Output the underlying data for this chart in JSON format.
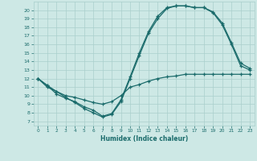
{
  "xlabel": "Humidex (Indice chaleur)",
  "xlim": [
    -0.5,
    23.5
  ],
  "ylim": [
    6.5,
    21
  ],
  "yticks": [
    7,
    8,
    9,
    10,
    11,
    12,
    13,
    14,
    15,
    16,
    17,
    18,
    19,
    20
  ],
  "xticks": [
    0,
    1,
    2,
    3,
    4,
    5,
    6,
    7,
    8,
    9,
    10,
    11,
    12,
    13,
    14,
    15,
    16,
    17,
    18,
    19,
    20,
    21,
    22,
    23
  ],
  "bg_color": "#cde8e5",
  "grid_color": "#aacfcc",
  "line_color": "#1a6b6b",
  "curve1_x": [
    0,
    1,
    2,
    3,
    4,
    5,
    6,
    7,
    8,
    9,
    10,
    11,
    12,
    13,
    14,
    15,
    16,
    17,
    18,
    19,
    20,
    21,
    22,
    23
  ],
  "curve1_y": [
    12,
    11,
    10.5,
    9.8,
    9.2,
    8.5,
    8.0,
    7.5,
    7.8,
    9.3,
    12.0,
    14.7,
    17.3,
    19.0,
    20.2,
    20.5,
    20.5,
    20.3,
    20.3,
    19.7,
    18.3,
    16.0,
    13.5,
    13.0
  ],
  "curve2_x": [
    0,
    1,
    2,
    3,
    4,
    5,
    6,
    7,
    8,
    9,
    10,
    11,
    12,
    13,
    14,
    15,
    16,
    17,
    18,
    19,
    20,
    21,
    22,
    23
  ],
  "curve2_y": [
    12,
    11.2,
    10.2,
    9.7,
    9.3,
    8.7,
    8.3,
    7.6,
    7.9,
    9.5,
    12.2,
    15.0,
    17.5,
    19.3,
    20.3,
    20.5,
    20.5,
    20.3,
    20.3,
    19.8,
    18.5,
    16.2,
    13.8,
    13.2
  ],
  "curve3_x": [
    0,
    1,
    2,
    3,
    4,
    5,
    6,
    7,
    8,
    9,
    10,
    11,
    12,
    13,
    14,
    15,
    16,
    17,
    18,
    19,
    20,
    21,
    22,
    23
  ],
  "curve3_y": [
    12,
    11.2,
    10.5,
    10.0,
    9.8,
    9.5,
    9.2,
    9.0,
    9.3,
    10.0,
    11.0,
    11.3,
    11.7,
    12.0,
    12.2,
    12.3,
    12.5,
    12.5,
    12.5,
    12.5,
    12.5,
    12.5,
    12.5,
    12.5
  ]
}
